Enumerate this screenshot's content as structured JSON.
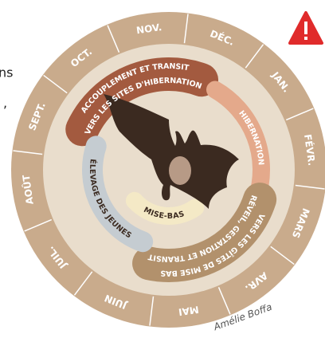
{
  "months": [
    "NOV.",
    "DÉC.",
    "JAN.",
    "FÉVR.",
    "MARS",
    "AVR.",
    "MAI",
    "JUIN",
    "JUIL.",
    "AOÛT",
    "SEPT.",
    "OCT."
  ],
  "phases": [
    {
      "lines": [
        "ACCOUPLEMENT ET TRANSIT",
        "VERS LES SITES D'HIBERNATION"
      ]
    },
    {
      "lines": [
        "HIBERNATION"
      ]
    },
    {
      "lines": [
        "RÉVEIL, GESTATION ET TRANSIT",
        "VERS LES GÎTES DE MISE BAS"
      ]
    },
    {
      "lines": [
        "ÉLEVAGE DES JEUNES"
      ]
    },
    {
      "lines": [
        "MISE-BAS"
      ]
    }
  ],
  "credit": "Amélie Boffa",
  "fragments": [
    "ns",
    ","
  ]
}
